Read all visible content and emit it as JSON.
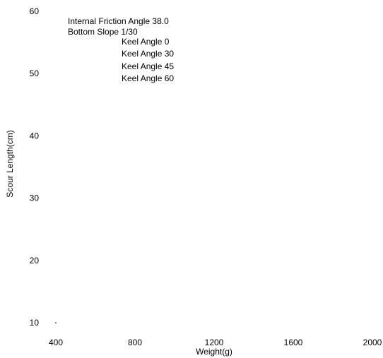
{
  "chart_data": {
    "type": "scatter",
    "title": "",
    "xlabel": "Weight(g)",
    "ylabel": "Scour Length(cm)",
    "xlim": [
      400,
      2000
    ],
    "ylim": [
      10,
      60
    ],
    "x_ticks": [
      400,
      800,
      1200,
      1600,
      2000
    ],
    "y_ticks": [
      10,
      20,
      30,
      40,
      50,
      60
    ],
    "x_tick_labels": [
      "400",
      "800",
      "1200",
      "1600",
      "2000"
    ],
    "y_tick_labels": [
      "10",
      "20",
      "30",
      "40",
      "50",
      "60"
    ],
    "grid": false,
    "annotations": [
      "Internal Friction Angle 38.0",
      "Bottom Slope 1/30"
    ],
    "legend_position": "top-left",
    "series": [
      {
        "name": "Keel Angle 0",
        "x": [
          400
        ],
        "y": [
          10
        ]
      },
      {
        "name": "Keel Angle 30",
        "x": [],
        "y": []
      },
      {
        "name": "Keel Angle 45",
        "x": [],
        "y": []
      },
      {
        "name": "Keel Angle 60",
        "x": [],
        "y": []
      }
    ]
  }
}
